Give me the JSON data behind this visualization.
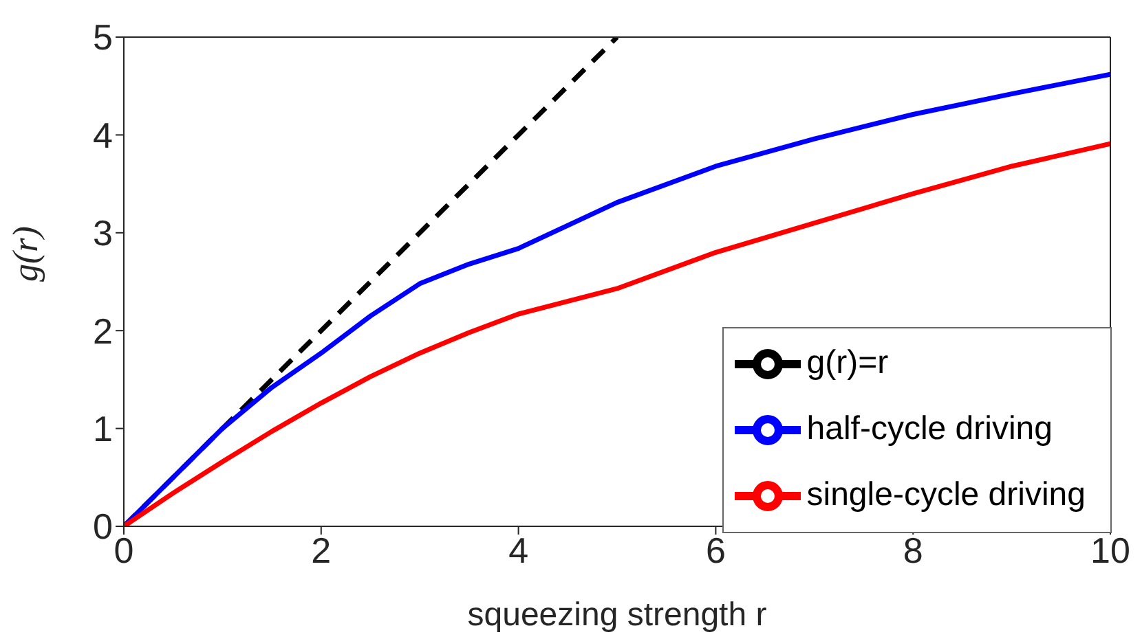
{
  "chart_data": {
    "type": "line",
    "xlabel": "squeezing strength r",
    "ylabel": "g(r)",
    "xlim": [
      0,
      10
    ],
    "ylim": [
      0,
      5
    ],
    "xticks": [
      0,
      2,
      4,
      6,
      8,
      10
    ],
    "yticks": [
      0,
      1,
      2,
      3,
      4,
      5
    ],
    "grid": false,
    "legend": "bottom right",
    "marker": "none",
    "series": [
      {
        "name": "g(r)=r",
        "color": "#000000",
        "line_style": "dashed",
        "x": [
          0,
          5
        ],
        "values": [
          0,
          5
        ]
      },
      {
        "name": "half-cycle driving",
        "color": "#0000ff",
        "line_style": "solid",
        "x": [
          0,
          0.5,
          1,
          1.5,
          2,
          2.5,
          3,
          3.5,
          4,
          5,
          6,
          7,
          8,
          9,
          10
        ],
        "values": [
          0,
          0.5,
          1.0,
          1.42,
          1.77,
          2.15,
          2.48,
          2.68,
          2.84,
          3.31,
          3.68,
          3.96,
          4.21,
          4.42,
          4.62
        ]
      },
      {
        "name": "single-cycle driving",
        "color": "#ff0000",
        "line_style": "solid",
        "x": [
          0,
          0.5,
          1,
          1.5,
          2,
          2.5,
          3,
          3.5,
          4,
          5,
          6,
          7,
          8,
          9,
          10
        ],
        "values": [
          0,
          0.34,
          0.66,
          0.97,
          1.26,
          1.53,
          1.77,
          1.98,
          2.17,
          2.43,
          2.8,
          3.1,
          3.4,
          3.68,
          3.91
        ]
      }
    ]
  }
}
